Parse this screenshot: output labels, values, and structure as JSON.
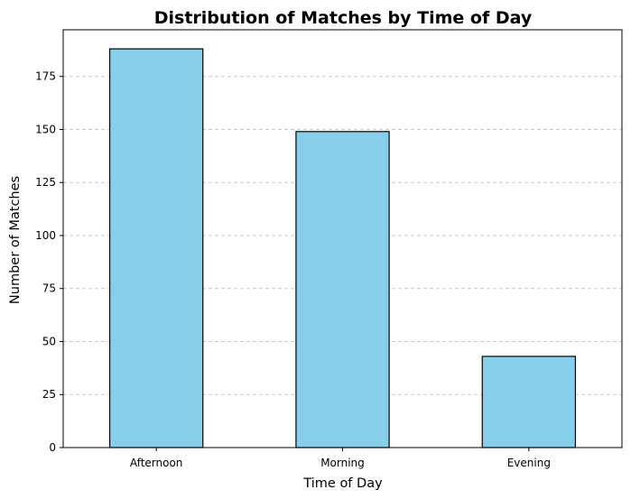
{
  "chart_data": {
    "type": "bar",
    "title": "Distribution of Matches by Time of Day",
    "xlabel": "Time of Day",
    "ylabel": "Number of Matches",
    "categories": [
      "Afternoon",
      "Morning",
      "Evening"
    ],
    "values": [
      188,
      149,
      43
    ],
    "ylim": [
      0,
      197
    ],
    "yticks": [
      0,
      25,
      50,
      75,
      100,
      125,
      150,
      175
    ],
    "grid": "y-dashed",
    "bar_color": "#87CEEB",
    "edge_color": "#000000",
    "grid_color": "#c8c8c8"
  }
}
